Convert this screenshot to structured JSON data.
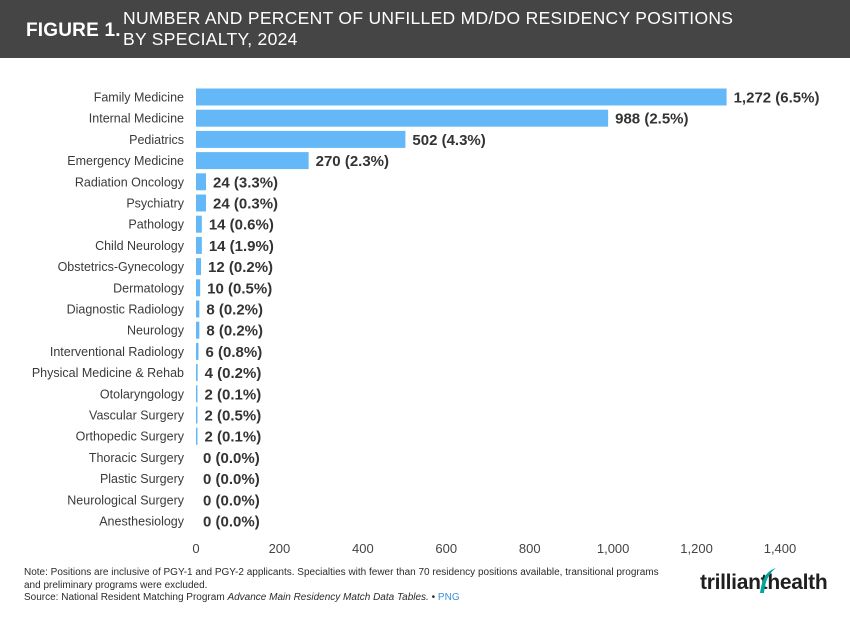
{
  "header": {
    "figure_label": "FIGURE 1.",
    "title_line1": "NUMBER AND PERCENT OF UNFILLED MD/DO RESIDENCY POSITIONS",
    "title_line2": "BY SPECIALTY, 2024"
  },
  "colors": {
    "bar": "#64b8f7",
    "header_bg": "#454545"
  },
  "chart_data": {
    "type": "bar",
    "orientation": "horizontal",
    "title": "NUMBER AND PERCENT OF UNFILLED MD/DO RESIDENCY POSITIONS BY SPECIALTY, 2024",
    "xlabel": "",
    "ylabel": "",
    "xlim": [
      0,
      1400
    ],
    "xticks": [
      0,
      200,
      400,
      600,
      800,
      1000,
      1200,
      1400
    ],
    "xtick_labels": [
      "0",
      "200",
      "400",
      "600",
      "800",
      "1,000",
      "1,200",
      "1,400"
    ],
    "grid": false,
    "categories": [
      "Family Medicine",
      "Internal Medicine",
      "Pediatrics",
      "Emergency Medicine",
      "Radiation Oncology",
      "Psychiatry",
      "Pathology",
      "Child Neurology",
      "Obstetrics-Gynecology",
      "Dermatology",
      "Diagnostic Radiology",
      "Neurology",
      "Interventional Radiology",
      "Physical Medicine & Rehab",
      "Otolaryngology",
      "Vascular Surgery",
      "Orthopedic Surgery",
      "Thoracic Surgery",
      "Plastic Surgery",
      "Neurological Surgery",
      "Anesthesiology"
    ],
    "values": [
      1272,
      988,
      502,
      270,
      24,
      24,
      14,
      14,
      12,
      10,
      8,
      8,
      6,
      4,
      2,
      2,
      2,
      0,
      0,
      0,
      0
    ],
    "data_labels": [
      "1,272 (6.5%)",
      "988 (2.5%)",
      "502 (4.3%)",
      "270 (2.3%)",
      "24 (3.3%)",
      "24 (0.3%)",
      "14 (0.6%)",
      "14 (1.9%)",
      "12 (0.2%)",
      "10 (0.5%)",
      "8 (0.2%)",
      "8 (0.2%)",
      "6 (0.8%)",
      "4 (0.2%)",
      "2 (0.1%)",
      "2 (0.5%)",
      "2 (0.1%)",
      "0 (0.0%)",
      "0 (0.0%)",
      "0 (0.0%)",
      "0 (0.0%)"
    ]
  },
  "footer": {
    "note": "Note: Positions are inclusive of PGY-1 and PGY-2 applicants. Specialties with fewer than 70 residency positions available, transitional programs and preliminary programs were excluded.",
    "source_prefix": "Source: National Resident Matching Program ",
    "source_title": "Advance Main Residency Match Data Tables.",
    "separator": "•",
    "png_link": "PNG"
  },
  "logo": {
    "word1": "trilliant",
    "word2": "health"
  }
}
